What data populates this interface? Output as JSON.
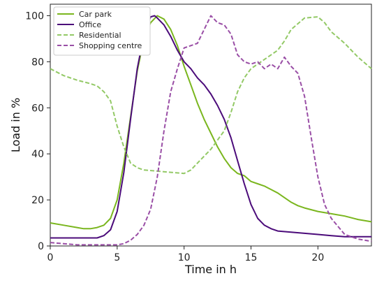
{
  "chart_data": {
    "type": "line",
    "xlabel": "Time in h",
    "ylabel": "Load in %",
    "xlim": [
      0,
      24
    ],
    "ylim": [
      0,
      105
    ],
    "xticks": [
      0,
      5,
      10,
      15,
      20
    ],
    "yticks": [
      0,
      20,
      40,
      60,
      80,
      100
    ],
    "grid": false,
    "legend_position": "top-left",
    "series": [
      {
        "name": "Car park",
        "color": "#7ab61e",
        "style": "solid",
        "points": [
          [
            0,
            10
          ],
          [
            1,
            9
          ],
          [
            2,
            8
          ],
          [
            2.5,
            7.5
          ],
          [
            3,
            7.5
          ],
          [
            3.5,
            8
          ],
          [
            4,
            9
          ],
          [
            4.5,
            12
          ],
          [
            5,
            20
          ],
          [
            5.5,
            36
          ],
          [
            6,
            56
          ],
          [
            6.5,
            76
          ],
          [
            7,
            90
          ],
          [
            7.5,
            97
          ],
          [
            8,
            100
          ],
          [
            8.5,
            98.5
          ],
          [
            9,
            94
          ],
          [
            9.5,
            87
          ],
          [
            10,
            78
          ],
          [
            10.5,
            70
          ],
          [
            11,
            62
          ],
          [
            11.5,
            55
          ],
          [
            12,
            49
          ],
          [
            12.5,
            43
          ],
          [
            13,
            38
          ],
          [
            13.5,
            34
          ],
          [
            14,
            31.5
          ],
          [
            14.5,
            30.5
          ],
          [
            15,
            28
          ],
          [
            15.5,
            27
          ],
          [
            16,
            26
          ],
          [
            16.5,
            24.5
          ],
          [
            17,
            23
          ],
          [
            17.5,
            21
          ],
          [
            18,
            19
          ],
          [
            18.5,
            17.5
          ],
          [
            19,
            16.5
          ],
          [
            20,
            15
          ],
          [
            21,
            14
          ],
          [
            22,
            13
          ],
          [
            23,
            11.5
          ],
          [
            24,
            10.5
          ]
        ]
      },
      {
        "name": "Office",
        "color": "#4b0b7a",
        "style": "solid",
        "points": [
          [
            0,
            3.5
          ],
          [
            1,
            3.5
          ],
          [
            2,
            3.5
          ],
          [
            3,
            3.5
          ],
          [
            3.5,
            3.5
          ],
          [
            4,
            4.5
          ],
          [
            4.5,
            7
          ],
          [
            5,
            15
          ],
          [
            5.5,
            32
          ],
          [
            6,
            55
          ],
          [
            6.5,
            77
          ],
          [
            7,
            92
          ],
          [
            7.5,
            99.5
          ],
          [
            7.8,
            100
          ],
          [
            8,
            99
          ],
          [
            8.5,
            96
          ],
          [
            9,
            91
          ],
          [
            9.5,
            85
          ],
          [
            10,
            80
          ],
          [
            10.5,
            77
          ],
          [
            11,
            73
          ],
          [
            11.5,
            70
          ],
          [
            12,
            66
          ],
          [
            12.5,
            61
          ],
          [
            13,
            55
          ],
          [
            13.5,
            47
          ],
          [
            14,
            37
          ],
          [
            14.5,
            27
          ],
          [
            15,
            18
          ],
          [
            15.5,
            12
          ],
          [
            16,
            9
          ],
          [
            16.5,
            7.5
          ],
          [
            17,
            6.5
          ],
          [
            18,
            6
          ],
          [
            19,
            5.5
          ],
          [
            20,
            5
          ],
          [
            21,
            4.5
          ],
          [
            22,
            4
          ],
          [
            23,
            4
          ],
          [
            24,
            4
          ]
        ]
      },
      {
        "name": "Residential",
        "color": "#93c966",
        "style": "dashed",
        "points": [
          [
            0,
            77
          ],
          [
            1,
            74
          ],
          [
            2,
            72
          ],
          [
            3,
            70.5
          ],
          [
            3.5,
            69.5
          ],
          [
            4,
            67
          ],
          [
            4.5,
            63
          ],
          [
            5,
            52
          ],
          [
            5.5,
            43
          ],
          [
            6,
            36
          ],
          [
            6.5,
            34
          ],
          [
            7,
            33
          ],
          [
            8,
            32.5
          ],
          [
            9,
            32
          ],
          [
            10,
            31.5
          ],
          [
            10.5,
            33
          ],
          [
            11,
            36
          ],
          [
            12,
            42
          ],
          [
            13,
            50
          ],
          [
            13.5,
            58
          ],
          [
            14,
            67
          ],
          [
            14.5,
            73
          ],
          [
            15,
            77
          ],
          [
            16,
            81
          ],
          [
            17,
            85
          ],
          [
            17.5,
            89
          ],
          [
            18,
            94
          ],
          [
            19,
            99
          ],
          [
            20,
            99.5
          ],
          [
            20.5,
            97
          ],
          [
            21,
            93
          ],
          [
            22,
            88
          ],
          [
            23,
            82
          ],
          [
            24,
            77
          ]
        ]
      },
      {
        "name": "Shopping centre",
        "color": "#9a4fa6",
        "style": "dashed",
        "points": [
          [
            0,
            1.5
          ],
          [
            1,
            1
          ],
          [
            2,
            0.5
          ],
          [
            3,
            0.5
          ],
          [
            4,
            0.5
          ],
          [
            5,
            0.5
          ],
          [
            5.5,
            1
          ],
          [
            6,
            2.5
          ],
          [
            6.5,
            5
          ],
          [
            7,
            9
          ],
          [
            7.5,
            16
          ],
          [
            8,
            30
          ],
          [
            8.5,
            50
          ],
          [
            9,
            67
          ],
          [
            9.5,
            77
          ],
          [
            10,
            86
          ],
          [
            10.5,
            87
          ],
          [
            11,
            88
          ],
          [
            11.5,
            94
          ],
          [
            12,
            100
          ],
          [
            12.5,
            97
          ],
          [
            13,
            96
          ],
          [
            13.5,
            92
          ],
          [
            14,
            83
          ],
          [
            14.5,
            80
          ],
          [
            15,
            79
          ],
          [
            15.5,
            80
          ],
          [
            16,
            77
          ],
          [
            16.5,
            79
          ],
          [
            17,
            77
          ],
          [
            17.5,
            82
          ],
          [
            18,
            78
          ],
          [
            18.5,
            75
          ],
          [
            19,
            65
          ],
          [
            19.5,
            47
          ],
          [
            20,
            30
          ],
          [
            20.5,
            18
          ],
          [
            21,
            12
          ],
          [
            22,
            5
          ],
          [
            23,
            3
          ],
          [
            24,
            2
          ]
        ]
      }
    ]
  }
}
